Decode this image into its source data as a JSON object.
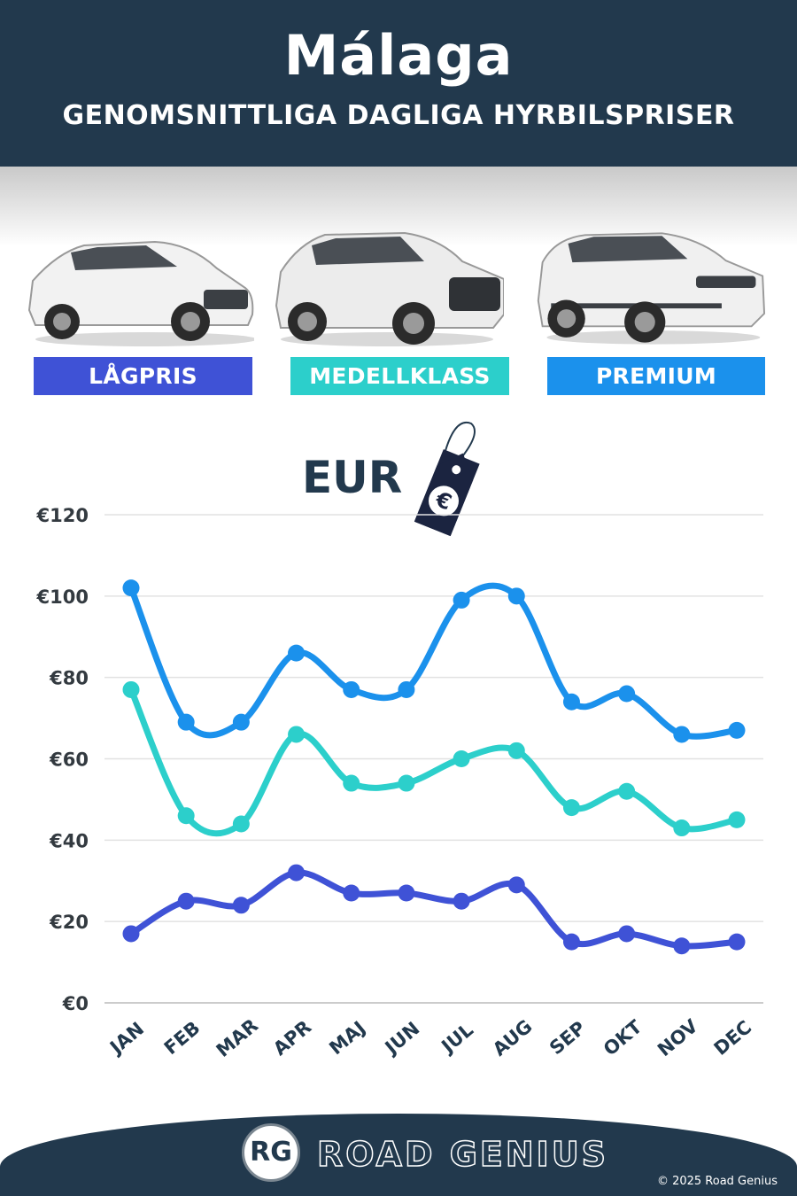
{
  "header": {
    "title": "Málaga",
    "subtitle": "GENOMSNITTLIGA DAGLIGA HYRBILSPRISER"
  },
  "categories": [
    {
      "label": "LÅGPRIS",
      "color": "#3f52d6"
    },
    {
      "label": "MEDELLKLASS",
      "color": "#2ccfcb"
    },
    {
      "label": "PREMIUM",
      "color": "#1b91ec"
    }
  ],
  "currency": {
    "label": "EUR",
    "symbol": "€"
  },
  "chart_data": {
    "type": "line",
    "categories": [
      "JAN",
      "FEB",
      "MAR",
      "APR",
      "MAJ",
      "JUN",
      "JUL",
      "AUG",
      "SEP",
      "OKT",
      "NOV",
      "DEC"
    ],
    "series": [
      {
        "name": "PREMIUM",
        "color": "#1b91ec",
        "values": [
          102,
          69,
          69,
          86,
          77,
          77,
          99,
          100,
          74,
          76,
          66,
          67
        ]
      },
      {
        "name": "MEDELLKLASS",
        "color": "#2ccfcb",
        "values": [
          77,
          46,
          44,
          66,
          54,
          54,
          60,
          62,
          48,
          52,
          43,
          45
        ]
      },
      {
        "name": "LÅGPRIS",
        "color": "#3f52d6",
        "values": [
          17,
          25,
          24,
          32,
          27,
          27,
          25,
          29,
          15,
          17,
          14,
          15
        ]
      }
    ],
    "yticks": [
      "€0",
      "€20",
      "€40",
      "€60",
      "€80",
      "€100",
      "€120"
    ],
    "ylim": [
      0,
      120
    ],
    "grid": true
  },
  "footer": {
    "logo": "RG",
    "brand": "ROAD GENIUS",
    "copyright": "© 2025 Road Genius"
  }
}
